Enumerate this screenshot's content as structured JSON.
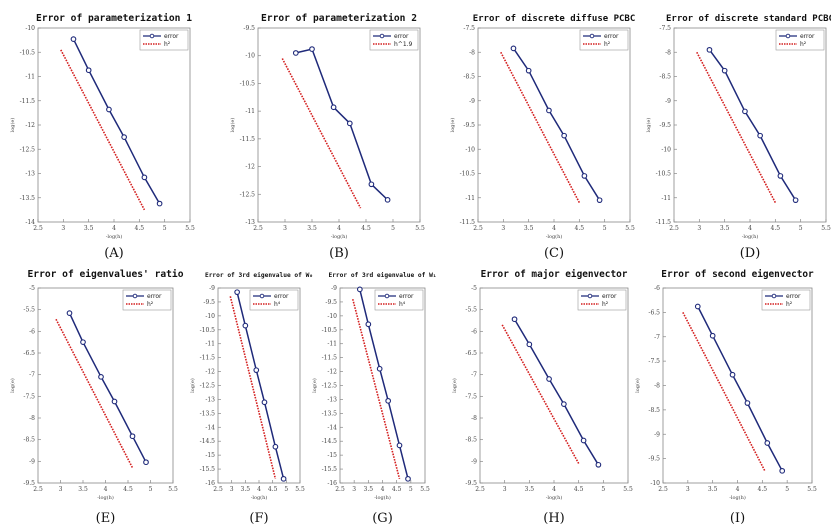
{
  "colors": {
    "error": "#1f2a7a",
    "ref": "#d42020",
    "frame": "#888888"
  },
  "chart_data": [
    {
      "type": "line",
      "title": "Error of parameterization 1",
      "caption": "(A)",
      "xlabel": "-log(h)",
      "ylabel": "log(e)",
      "xlim": [
        2.5,
        5.5
      ],
      "ylim": [
        -14,
        -10
      ],
      "xticks": [
        "2.5",
        "3",
        "3.5",
        "4",
        "4.5",
        "5",
        "5.5"
      ],
      "yticks": [
        "-10",
        "-10.5",
        "-11",
        "-11.5",
        "-12",
        "-12.5",
        "-13",
        "-13.5",
        "-14"
      ],
      "legend": [
        "error",
        "h²"
      ],
      "series": [
        {
          "name": "error",
          "x": [
            3.2,
            3.5,
            3.9,
            4.2,
            4.6,
            4.9
          ],
          "y": [
            -10.23,
            -10.87,
            -11.68,
            -12.25,
            -13.08,
            -13.62
          ]
        },
        {
          "name": "h²",
          "x": [
            2.95,
            4.6
          ],
          "y": [
            -10.45,
            -13.75
          ]
        }
      ]
    },
    {
      "type": "line",
      "title": "Error of parameterization 2",
      "caption": "(B)",
      "xlabel": "-log(h)",
      "ylabel": "log(e)",
      "xlim": [
        2.5,
        5.5
      ],
      "ylim": [
        -13,
        -9.5
      ],
      "xticks": [
        "2.5",
        "3",
        "3.5",
        "4",
        "4.5",
        "5",
        "5.5"
      ],
      "yticks": [
        "-9.5",
        "-10",
        "-10.5",
        "-11",
        "-11.5",
        "-12",
        "-12.5",
        "-13"
      ],
      "legend": [
        "error",
        "h^1.9"
      ],
      "series": [
        {
          "name": "error",
          "x": [
            3.2,
            3.5,
            3.9,
            4.2,
            4.6,
            4.9
          ],
          "y": [
            -9.95,
            -9.88,
            -10.93,
            -11.22,
            -12.32,
            -12.6
          ]
        },
        {
          "name": "h^1.9",
          "x": [
            2.95,
            4.4
          ],
          "y": [
            -10.05,
            -12.75
          ]
        }
      ]
    },
    {
      "type": "line",
      "title": "Error of discrete diffuse PCBC",
      "caption": "(C)",
      "xlabel": "-log(h)",
      "ylabel": "log(e)",
      "xlim": [
        2.5,
        5.5
      ],
      "ylim": [
        -11.5,
        -7.5
      ],
      "xticks": [
        "2.5",
        "3",
        "3.5",
        "4",
        "4.5",
        "5",
        "5.5"
      ],
      "yticks": [
        "-7.5",
        "-8",
        "-8.5",
        "-9",
        "-9.5",
        "-10",
        "-10.5",
        "-11",
        "-11.5"
      ],
      "legend": [
        "error",
        "h²"
      ],
      "series": [
        {
          "name": "error",
          "x": [
            3.2,
            3.5,
            3.9,
            4.2,
            4.6,
            4.9
          ],
          "y": [
            -7.92,
            -8.38,
            -9.2,
            -9.72,
            -10.55,
            -11.05
          ]
        },
        {
          "name": "h²",
          "x": [
            2.95,
            4.5
          ],
          "y": [
            -8.0,
            -11.1
          ]
        }
      ]
    },
    {
      "type": "line",
      "title": "Error of discrete standard PCBC",
      "caption": "(D)",
      "xlabel": "-log(h)",
      "ylabel": "log(e)",
      "xlim": [
        2.5,
        5.5
      ],
      "ylim": [
        -11.5,
        -7.5
      ],
      "xticks": [
        "2.5",
        "3",
        "3.5",
        "4",
        "4.5",
        "5",
        "5.5"
      ],
      "yticks": [
        "-7.5",
        "-8",
        "-8.5",
        "-9",
        "-9.5",
        "-10",
        "-10.5",
        "-11",
        "-11.5"
      ],
      "legend": [
        "error",
        "h²"
      ],
      "series": [
        {
          "name": "error",
          "x": [
            3.2,
            3.5,
            3.9,
            4.2,
            4.6,
            4.9
          ],
          "y": [
            -7.95,
            -8.38,
            -9.22,
            -9.72,
            -10.55,
            -11.05
          ]
        },
        {
          "name": "h²",
          "x": [
            2.95,
            4.5
          ],
          "y": [
            -8.0,
            -11.1
          ]
        }
      ]
    },
    {
      "type": "line",
      "title": "Error of eigenvalues' ratio",
      "caption": "(E)",
      "xlabel": "-log(h)",
      "ylabel": "log(e)",
      "xlim": [
        2.5,
        5.5
      ],
      "ylim": [
        -9.5,
        -5
      ],
      "xticks": [
        "2.5",
        "3",
        "3.5",
        "4",
        "4.5",
        "5",
        "5.5"
      ],
      "yticks": [
        "-5",
        "-5.5",
        "-6",
        "-6.5",
        "-7",
        "-7.5",
        "-8",
        "-8.5",
        "-9",
        "-9.5"
      ],
      "legend": [
        "error",
        "h²"
      ],
      "series": [
        {
          "name": "error",
          "x": [
            3.2,
            3.5,
            3.9,
            4.2,
            4.6,
            4.9
          ],
          "y": [
            -5.58,
            -6.25,
            -7.05,
            -7.62,
            -8.42,
            -9.02
          ]
        },
        {
          "name": "h²",
          "x": [
            2.9,
            4.6
          ],
          "y": [
            -5.72,
            -9.15
          ]
        }
      ]
    },
    {
      "type": "line",
      "title": "Error of 3rd eigenvalue of W₀",
      "caption": "(F)",
      "xlabel": "-log(h)",
      "ylabel": "log(e)",
      "xlim": [
        2.5,
        5.5
      ],
      "ylim": [
        -16,
        -9
      ],
      "xticks": [
        "2.5",
        "3",
        "3.5",
        "4",
        "4.5",
        "5",
        "5.5"
      ],
      "yticks": [
        "-9",
        "-9.5",
        "-10",
        "-10.5",
        "-11",
        "-11.5",
        "-12",
        "-12.5",
        "-13",
        "-13.5",
        "-14",
        "-14.5",
        "-15",
        "-15.5",
        "-16"
      ],
      "legend": [
        "error",
        "h⁴"
      ],
      "series": [
        {
          "name": "error",
          "x": [
            3.2,
            3.5,
            3.9,
            4.2,
            4.6,
            4.9
          ],
          "y": [
            -9.15,
            -10.35,
            -11.95,
            -13.1,
            -14.7,
            -15.85
          ]
        },
        {
          "name": "h⁴",
          "x": [
            2.95,
            4.6
          ],
          "y": [
            -9.3,
            -15.85
          ]
        }
      ]
    },
    {
      "type": "line",
      "title": "Error of 3rd eigenvalue of W₁",
      "caption": "(G)",
      "xlabel": "-log(h)",
      "ylabel": "log(e)",
      "xlim": [
        2.5,
        5.5
      ],
      "ylim": [
        -16,
        -9
      ],
      "xticks": [
        "2.5",
        "3",
        "3.5",
        "4",
        "4.5",
        "5",
        "5.5"
      ],
      "yticks": [
        "-9",
        "-9.5",
        "-10",
        "-10.5",
        "-11",
        "-11.5",
        "-12",
        "-12.5",
        "-13",
        "-13.5",
        "-14",
        "-14.5",
        "-15",
        "-15.5",
        "-16"
      ],
      "legend": [
        "error",
        "h⁴"
      ],
      "series": [
        {
          "name": "error",
          "x": [
            3.2,
            3.5,
            3.9,
            4.2,
            4.6,
            4.9
          ],
          "y": [
            -9.05,
            -10.3,
            -11.9,
            -13.05,
            -14.65,
            -15.85
          ]
        },
        {
          "name": "h⁴",
          "x": [
            2.95,
            4.6
          ],
          "y": [
            -9.4,
            -15.85
          ]
        }
      ]
    },
    {
      "type": "line",
      "title": "Error of major eigenvector",
      "caption": "(H)",
      "xlabel": "-log(h)",
      "ylabel": "log(e)",
      "xlim": [
        2.5,
        5.5
      ],
      "ylim": [
        -9.5,
        -5
      ],
      "xticks": [
        "2.5",
        "3",
        "3.5",
        "4",
        "4.5",
        "5",
        "5.5"
      ],
      "yticks": [
        "-5",
        "-5.5",
        "-6",
        "-6.5",
        "-7",
        "-7.5",
        "-8",
        "-8.5",
        "-9",
        "-9.5"
      ],
      "legend": [
        "error",
        "h²"
      ],
      "series": [
        {
          "name": "error",
          "x": [
            3.2,
            3.5,
            3.9,
            4.2,
            4.6,
            4.9
          ],
          "y": [
            -5.72,
            -6.3,
            -7.1,
            -7.68,
            -8.52,
            -9.08
          ]
        },
        {
          "name": "h²",
          "x": [
            2.95,
            4.5
          ],
          "y": [
            -5.85,
            -9.05
          ]
        }
      ]
    },
    {
      "type": "line",
      "title": "Error of second eigenvector",
      "caption": "(I)",
      "xlabel": "-log(h)",
      "ylabel": "log(e)",
      "xlim": [
        2.5,
        5.5
      ],
      "ylim": [
        -10,
        -6
      ],
      "xticks": [
        "2.5",
        "3",
        "3.5",
        "4",
        "4.5",
        "5",
        "5.5"
      ],
      "yticks": [
        "-6",
        "-6.5",
        "-7",
        "-7.5",
        "-8",
        "-8.5",
        "-9",
        "-9.5",
        "-10"
      ],
      "legend": [
        "error",
        "h²"
      ],
      "series": [
        {
          "name": "error",
          "x": [
            3.2,
            3.5,
            3.9,
            4.2,
            4.6,
            4.9
          ],
          "y": [
            -6.38,
            -6.98,
            -7.78,
            -8.36,
            -9.18,
            -9.75
          ]
        },
        {
          "name": "h²",
          "x": [
            2.9,
            4.55
          ],
          "y": [
            -6.5,
            -9.75
          ]
        }
      ]
    }
  ]
}
